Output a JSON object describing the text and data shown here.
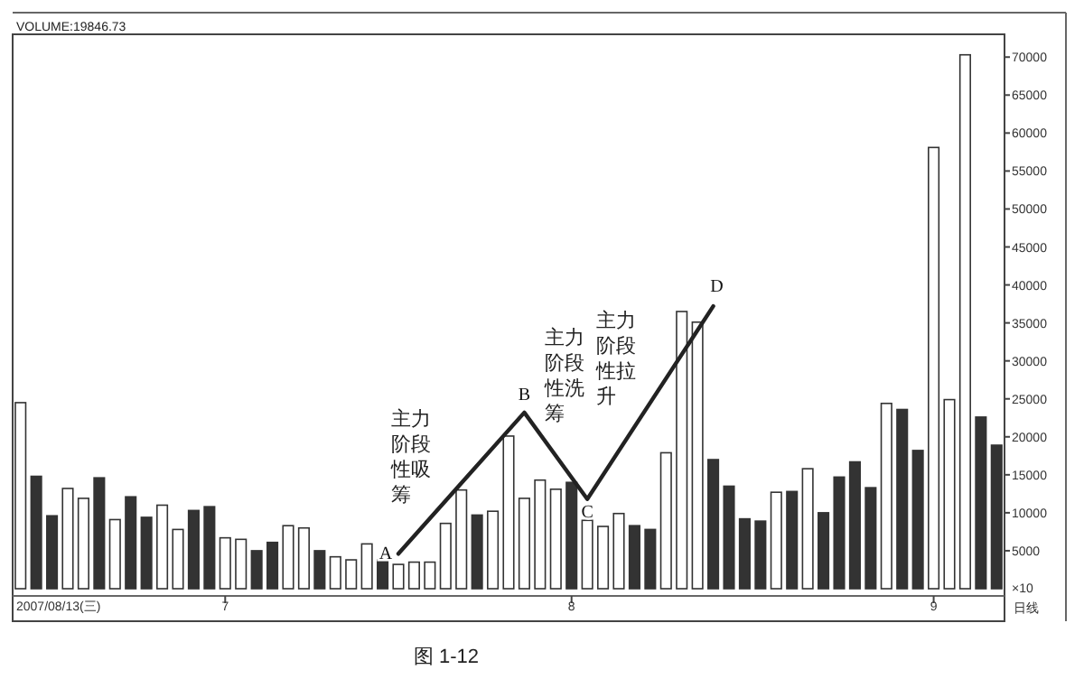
{
  "chart_data": {
    "type": "bar",
    "categories": [
      null,
      null,
      null,
      null,
      null,
      null,
      null,
      null,
      null,
      null,
      null,
      null,
      null,
      "7",
      null,
      null,
      null,
      null,
      null,
      null,
      null,
      null,
      null,
      null,
      null,
      null,
      null,
      null,
      null,
      null,
      null,
      null,
      null,
      null,
      null,
      "8",
      null,
      null,
      null,
      null,
      null,
      null,
      null,
      null,
      null,
      null,
      null,
      null,
      null,
      null,
      null,
      null,
      null,
      null,
      null,
      null,
      null,
      null,
      "9",
      null,
      null,
      null,
      null
    ],
    "series": [
      {
        "values": [
          24500,
          14800,
          9600,
          13200,
          11900,
          14600,
          9100,
          12100,
          9400,
          11000,
          7800,
          10300,
          10800,
          6700,
          6500,
          5000,
          6100,
          8300,
          8000,
          5000,
          4200,
          3800,
          5900,
          3800,
          3200,
          3500,
          3500,
          8600,
          13000,
          9700,
          10200,
          20100,
          11900,
          14300,
          13100,
          14000,
          9000,
          8200,
          9900,
          8300,
          7800,
          17900,
          36500,
          35100,
          17000,
          13500,
          9200,
          8900,
          12700,
          12800,
          15800,
          10000,
          14700,
          16700,
          13300,
          24400,
          23600,
          18200,
          58100,
          24900,
          70300,
          22600,
          18900
        ],
        "colors": [
          "#ffffff",
          "#333333",
          "#333333",
          "#ffffff",
          "#ffffff",
          "#333333",
          "#ffffff",
          "#333333",
          "#333333",
          "#ffffff",
          "#ffffff",
          "#333333",
          "#333333",
          "#ffffff",
          "#ffffff",
          "#333333",
          "#333333",
          "#ffffff",
          "#ffffff",
          "#333333",
          "#ffffff",
          "#ffffff",
          "#ffffff",
          "#333333",
          "#ffffff",
          "#ffffff",
          "#ffffff",
          "#ffffff",
          "#ffffff",
          "#333333",
          "#ffffff",
          "#ffffff",
          "#ffffff",
          "#ffffff",
          "#ffffff",
          "#333333",
          "#ffffff",
          "#ffffff",
          "#ffffff",
          "#333333",
          "#333333",
          "#ffffff",
          "#ffffff",
          "#ffffff",
          "#333333",
          "#333333",
          "#333333",
          "#333333",
          "#ffffff",
          "#333333",
          "#ffffff",
          "#333333",
          "#333333",
          "#333333",
          "#333333",
          "#ffffff",
          "#333333",
          "#333333",
          "#ffffff",
          "#ffffff",
          "#ffffff",
          "#333333",
          "#333333"
        ]
      },
      {
        "type": "line",
        "color": "#222222",
        "values": [
          null,
          null,
          null,
          null,
          null,
          null,
          null,
          null,
          null,
          null,
          null,
          null,
          null,
          null,
          null,
          null,
          null,
          null,
          null,
          null,
          null,
          null,
          null,
          null,
          4600,
          null,
          null,
          null,
          null,
          null,
          null,
          null,
          23200,
          null,
          null,
          null,
          11800,
          null,
          null,
          null,
          null,
          null,
          null,
          null,
          37200,
          null,
          null,
          null,
          null,
          null,
          null,
          null,
          null,
          null,
          null,
          null,
          null,
          null,
          null,
          null,
          null,
          null,
          null
        ]
      }
    ],
    "ylabel": "×10",
    "ylim": [
      0,
      73000
    ],
    "yticks": [
      5000,
      10000,
      15000,
      20000,
      25000,
      30000,
      35000,
      40000,
      45000,
      50000,
      55000,
      60000,
      65000,
      70000
    ],
    "grid": false,
    "annotations": [
      "A",
      "B",
      "C",
      "D",
      "主力阶段性吸筹",
      "主力阶段性洗筹",
      "主力阶段性拉升",
      "VOLUME:19846.73",
      "2007/08/13(三)",
      "日线",
      "图 1-12"
    ]
  }
}
